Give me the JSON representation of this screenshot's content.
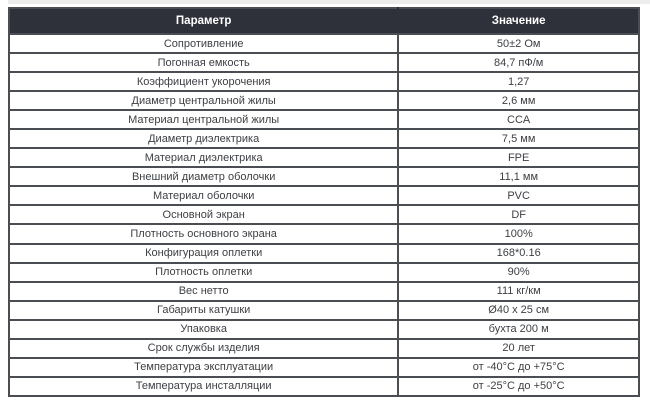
{
  "page": {
    "top_strip_color": "#ededed",
    "background": "#ffffff"
  },
  "table": {
    "colors": {
      "header_bg": "#2e313a",
      "header_text": "#ffffff",
      "border": "#4a4d52",
      "body_text": "#3d4044",
      "body_bg": "#ffffff"
    },
    "header": {
      "param": "Параметр",
      "value": "Значение"
    },
    "rows": [
      {
        "param": "Сопротивление",
        "value": "50±2 Ом"
      },
      {
        "param": "Погонная емкость",
        "value": "84,7 пФ/м"
      },
      {
        "param": "Коэффициент укорочения",
        "value": "1,27"
      },
      {
        "param": "Диаметр центральной жилы",
        "value": "2,6 мм"
      },
      {
        "param": "Материал центральной жилы",
        "value": "CCA"
      },
      {
        "param": "Диаметр диэлектрика",
        "value": "7,5 мм"
      },
      {
        "param": "Материал диэлектрика",
        "value": "FPE"
      },
      {
        "param": "Внешний диаметр оболочки",
        "value": "11,1 мм"
      },
      {
        "param": "Материал оболочки",
        "value": "PVC"
      },
      {
        "param": "Основной экран",
        "value": "DF"
      },
      {
        "param": "Плотность основного экрана",
        "value": "100%"
      },
      {
        "param": "Конфигурация оплетки",
        "value": "168*0.16"
      },
      {
        "param": "Плотность оплетки",
        "value": "90%"
      },
      {
        "param": "Вес нетто",
        "value": "111 кг/км"
      },
      {
        "param": "Габариты катушки",
        "value": "Ø40 x 25 см"
      },
      {
        "param": "Упаковка",
        "value": "бухта 200 м"
      },
      {
        "param": "Срок службы изделия",
        "value": "20 лет"
      },
      {
        "param": "Температура эксплуатации",
        "value": "от -40°C до +75°C"
      },
      {
        "param": "Температура инсталляции",
        "value": "от -25°C до +50°C"
      }
    ]
  }
}
